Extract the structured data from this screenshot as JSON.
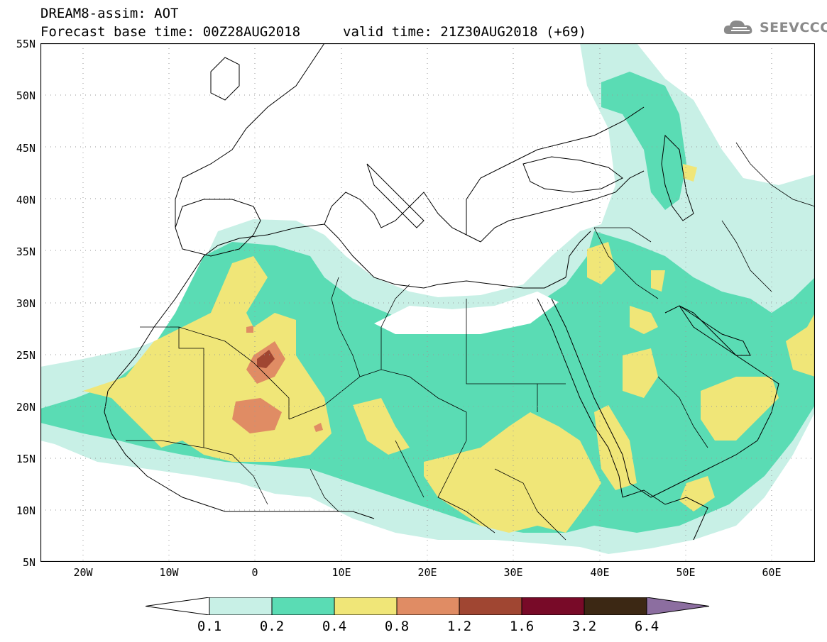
{
  "header": {
    "title": "DREAM8-assim: AOT",
    "base_time": "Forecast base time: 00Z28AUG2018",
    "valid_time": "valid time: 21Z30AUG2018 (+69)",
    "logo_text": "SEEVCCC"
  },
  "map": {
    "region": "North Africa / Middle East",
    "lat_labels": [
      "55N",
      "50N",
      "45N",
      "40N",
      "35N",
      "30N",
      "25N",
      "20N",
      "15N",
      "10N",
      "5N"
    ],
    "lon_labels": [
      "20W",
      "10W",
      "0",
      "10E",
      "20E",
      "30E",
      "40E",
      "50E",
      "60E"
    ],
    "colors": {
      "c01": "#c8f0e6",
      "c02": "#5adcb4",
      "c04": "#f0e678",
      "c08": "#e08c64",
      "c12": "#a04632",
      "c16": "#780a28",
      "c32": "#3c2814",
      "c64": "#8c6ea0"
    }
  },
  "colorbar": {
    "labels": [
      "0.1",
      "0.2",
      "0.4",
      "0.8",
      "1.2",
      "1.6",
      "3.2",
      "6.4"
    ]
  }
}
